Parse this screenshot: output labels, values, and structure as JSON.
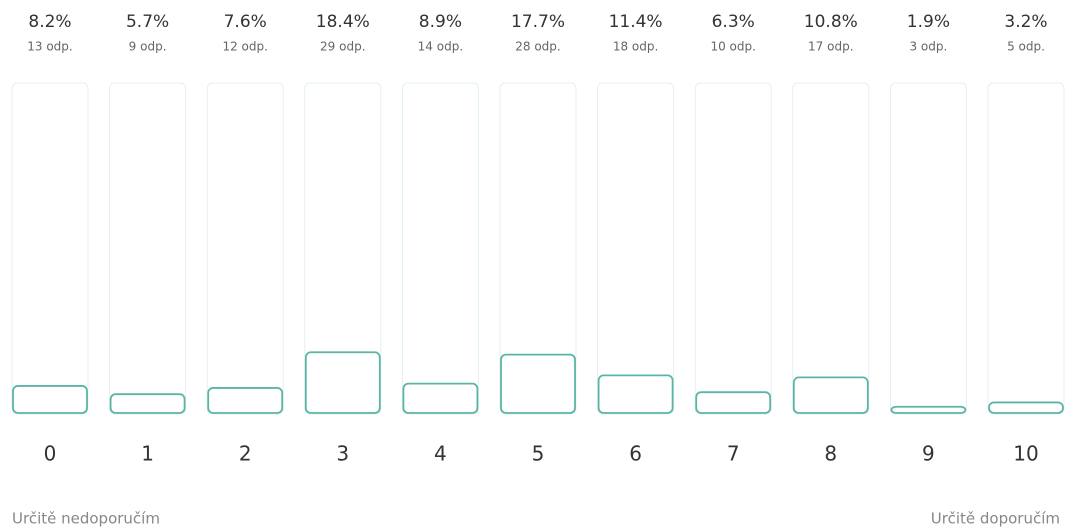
{
  "chart_data": {
    "type": "bar",
    "categories": [
      "0",
      "1",
      "2",
      "3",
      "4",
      "5",
      "6",
      "7",
      "8",
      "9",
      "10"
    ],
    "values": [
      8.2,
      5.7,
      7.6,
      18.4,
      8.9,
      17.7,
      11.4,
      6.3,
      10.8,
      1.9,
      3.2
    ],
    "value_labels": [
      "8.2%",
      "5.7%",
      "7.6%",
      "18.4%",
      "8.9%",
      "17.7%",
      "11.4%",
      "6.3%",
      "10.8%",
      "1.9%",
      "3.2%"
    ],
    "count_labels": [
      "13 odp.",
      "9 odp.",
      "12 odp.",
      "29 odp.",
      "14 odp.",
      "28 odp.",
      "18 odp.",
      "10 odp.",
      "17 odp.",
      "3 odp.",
      "5 odp."
    ],
    "ylim": [
      0,
      100
    ],
    "color": "#5bb5a6",
    "scale_min_label": "Určitě nedoporučím",
    "scale_max_label": "Určitě doporučím"
  }
}
